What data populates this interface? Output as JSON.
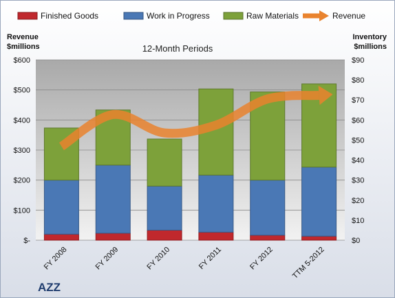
{
  "chart_data": {
    "type": "bar",
    "stacked": true,
    "title": "12-Month Periods",
    "ticker": "AZZ",
    "categories": [
      "FY 2008",
      "FY 2009",
      "FY 2010",
      "FY 2011",
      "FY 2012",
      "TTM 5-2012"
    ],
    "y_left": {
      "label_line1": "Revenue",
      "label_line2": "$millions",
      "min": 0,
      "max": 600,
      "ticks": [
        0,
        100,
        200,
        300,
        400,
        500,
        600
      ],
      "tick_labels": [
        "$-",
        "$100",
        "$200",
        "$300",
        "$400",
        "$500",
        "$600"
      ]
    },
    "y_right": {
      "label_line1": "Inventory",
      "label_line2": "$millions",
      "min": 0,
      "max": 90,
      "ticks": [
        0,
        10,
        20,
        30,
        40,
        50,
        60,
        70,
        80,
        90
      ],
      "tick_labels": [
        "$0",
        "$10",
        "$20",
        "$30",
        "$40",
        "$50",
        "$60",
        "$70",
        "$80",
        "$90"
      ]
    },
    "series": [
      {
        "name": "Finished Goods",
        "axis": "right",
        "color": "#c0282d",
        "values": [
          3,
          3.5,
          5,
          4,
          2.5,
          2
        ]
      },
      {
        "name": "Work in Progress",
        "axis": "right",
        "color": "#4a78b5",
        "values": [
          27,
          34,
          22,
          28.5,
          27.5,
          34.5
        ]
      },
      {
        "name": "Raw Materials",
        "axis": "right",
        "color": "#7da13a",
        "values": [
          26,
          27.5,
          23.5,
          43,
          44,
          41.5
        ]
      },
      {
        "name": "Revenue",
        "axis": "left",
        "type": "line",
        "color": "#e9832e",
        "values": [
          312,
          418,
          357,
          383,
          470,
          482
        ]
      }
    ],
    "legend_position": "top",
    "grid": true
  }
}
